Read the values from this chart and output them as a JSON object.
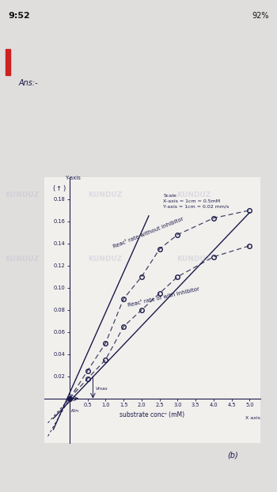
{
  "xlabel": "substrate concⁿ (mM)",
  "ans_text": "Ans:-",
  "scale_text": "Scale\nX-axis = 1cm = 0.5mM\nY-axis = 1cm = 0.02 mm/s",
  "label_without": "Reacᵗ rate without inhibitor",
  "label_with": "Reacᵗ rate of with inhibitor",
  "x_without": [
    0.0,
    0.5,
    1.0,
    1.5,
    2.0,
    2.5,
    3.0,
    4.0,
    5.0
  ],
  "y_without": [
    0.0,
    0.025,
    0.05,
    0.09,
    0.11,
    0.135,
    0.148,
    0.163,
    0.17
  ],
  "x_with": [
    0.0,
    0.5,
    1.0,
    1.5,
    2.0,
    2.5,
    3.0,
    4.0,
    5.0
  ],
  "y_with": [
    0.0,
    0.018,
    0.035,
    0.065,
    0.08,
    0.095,
    0.11,
    0.128,
    0.138
  ],
  "km_label": "Km",
  "vmax_label": "Vmax",
  "xlim": [
    -0.7,
    5.3
  ],
  "ylim": [
    -0.04,
    0.2
  ],
  "xticks": [
    0.5,
    1.0,
    1.5,
    2.0,
    2.5,
    3.0,
    3.5,
    4.0,
    4.5,
    5.0
  ],
  "yticks": [
    0.02,
    0.04,
    0.06,
    0.08,
    0.1,
    0.12,
    0.14,
    0.16,
    0.18
  ],
  "bg_top_color": "#e8e8e8",
  "paper_color": "#f0eeeb",
  "line_color": "#1a1a4a",
  "dot_color": "#1a1a4a",
  "dashed_color": "#555577",
  "status_bar_bg": "#d0d0d0"
}
